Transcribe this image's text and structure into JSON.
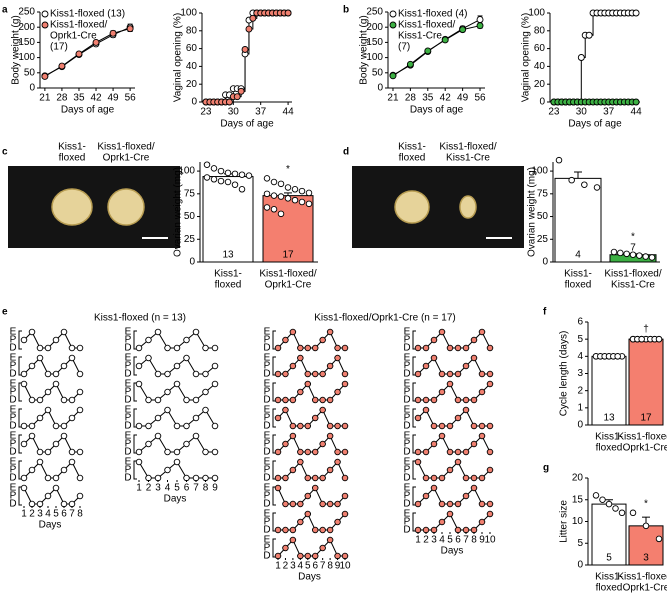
{
  "chart_data": [
    {
      "type": "line",
      "panel": "a",
      "y_label": "Body weight (g)",
      "x_label": "Days of age",
      "legend": true,
      "x": [
        21,
        28,
        35,
        42,
        49,
        56
      ],
      "xlim": [
        19,
        58
      ],
      "xticks": [
        21,
        28,
        35,
        42,
        49,
        56
      ],
      "ylim": [
        0,
        250
      ],
      "yticks": [
        0,
        50,
        100,
        150,
        200,
        250
      ],
      "series": [
        {
          "name": [
            "Kiss1-floxed (13)"
          ],
          "color": "#ffffff",
          "values": [
            40,
            70,
            110,
            145,
            175,
            200
          ],
          "errors": [
            2,
            3,
            4,
            6,
            8,
            10
          ]
        },
        {
          "name": [
            "Kiss1-floxed/",
            "Oprk1-Cre",
            "(17)"
          ],
          "color": "#f08070",
          "values": [
            38,
            72,
            112,
            150,
            180,
            195
          ],
          "errors": [
            2,
            3,
            4,
            6,
            8,
            9
          ]
        }
      ]
    },
    {
      "type": "line",
      "step": true,
      "y_label": "Vaginal opening (%)",
      "x_label": "Days of age",
      "x": [
        23,
        24,
        25,
        26,
        27,
        28,
        29,
        30,
        31,
        32,
        33,
        34,
        35,
        36,
        37,
        38,
        39,
        40,
        41,
        42,
        43,
        44
      ],
      "xlim": [
        22,
        45
      ],
      "xticks": [
        23,
        30,
        37,
        44
      ],
      "ylim": [
        0,
        100
      ],
      "yticks": [
        0,
        20,
        40,
        60,
        80,
        100
      ],
      "series": [
        {
          "name": [
            "Kiss1-floxed (13)"
          ],
          "color": "#ffffff",
          "values": [
            0,
            0,
            0,
            0,
            0,
            8,
            8,
            15,
            15,
            15,
            54,
            92,
            100,
            100,
            100,
            100,
            100,
            100,
            100,
            100,
            100,
            100
          ]
        },
        {
          "name": [
            "Kiss1-floxed/",
            "Oprk1-Cre",
            "(17)"
          ],
          "color": "#f08070",
          "values": [
            0,
            0,
            0,
            0,
            0,
            0,
            0,
            6,
            6,
            12,
            59,
            82,
            94,
            100,
            100,
            100,
            100,
            100,
            100,
            100,
            100,
            100
          ]
        }
      ]
    },
    {
      "type": "line",
      "panel": "b",
      "y_label": "Body weight (g)",
      "x_label": "Days of age",
      "legend": true,
      "x": [
        21,
        28,
        35,
        42,
        49,
        56
      ],
      "xlim": [
        19,
        58
      ],
      "xticks": [
        21,
        28,
        35,
        42,
        49,
        56
      ],
      "ylim": [
        0,
        250
      ],
      "yticks": [
        0,
        50,
        100,
        150,
        200,
        250
      ],
      "series": [
        {
          "name": [
            "Kiss1-floxed (4)"
          ],
          "color": "#ffffff",
          "values": [
            42,
            75,
            120,
            160,
            195,
            225
          ],
          "errors": [
            2,
            3,
            4,
            6,
            8,
            12
          ]
        },
        {
          "name": [
            "Kiss1-floxed/",
            "Kiss1-Cre",
            "(7)"
          ],
          "color": "#3cb043",
          "values": [
            40,
            78,
            122,
            158,
            192,
            205
          ],
          "errors": [
            2,
            3,
            4,
            5,
            7,
            8
          ]
        }
      ]
    },
    {
      "type": "line",
      "step": true,
      "y_label": "Vaginal opening (%)",
      "x_label": "Days of age",
      "x": [
        23,
        24,
        25,
        26,
        27,
        28,
        29,
        30,
        31,
        32,
        33,
        34,
        35,
        36,
        37,
        38,
        39,
        40,
        41,
        42,
        43,
        44
      ],
      "xlim": [
        22,
        45
      ],
      "xticks": [
        23,
        30,
        37,
        44
      ],
      "ylim": [
        0,
        100
      ],
      "yticks": [
        0,
        20,
        40,
        60,
        80,
        100
      ],
      "series": [
        {
          "name": [
            "Kiss1-floxed (4)"
          ],
          "color": "#ffffff",
          "values": [
            0,
            0,
            0,
            0,
            0,
            0,
            0,
            50,
            75,
            75,
            100,
            100,
            100,
            100,
            100,
            100,
            100,
            100,
            100,
            100,
            100,
            100
          ]
        },
        {
          "name": [
            "Kiss1-floxed/",
            "Kiss1-Cre",
            "(7)"
          ],
          "color": "#3cb043",
          "values": [
            0,
            0,
            0,
            0,
            0,
            0,
            0,
            0,
            0,
            0,
            0,
            0,
            0,
            0,
            0,
            0,
            0,
            0,
            0,
            0,
            0,
            0
          ]
        }
      ]
    },
    {
      "type": "image",
      "panel": "c",
      "labels": [
        [
          "Kiss1-",
          "floxed"
        ],
        [
          "Kiss1-floxed/",
          "Oprk1-Cre"
        ]
      ]
    },
    {
      "type": "bar",
      "y_label": "Ovarian weight (mg)",
      "categories": [
        [
          "Kiss1-",
          "floxed"
        ],
        [
          "Kiss1-floxed/",
          "Oprk1-Cre"
        ]
      ],
      "values": [
        94,
        73
      ],
      "errors": [
        3,
        3
      ],
      "colors": [
        "#ffffff",
        "#f47f6f"
      ],
      "n": [
        13,
        17
      ],
      "significance": [
        null,
        "*"
      ],
      "points": [
        [
          107,
          103,
          100,
          98,
          97,
          96,
          95,
          93,
          91,
          89,
          88,
          85,
          80
        ],
        [
          92,
          88,
          86,
          82,
          80,
          78,
          76,
          75,
          73,
          72,
          70,
          68,
          66,
          64,
          60,
          58,
          53
        ]
      ],
      "ylim": [
        0,
        110
      ],
      "yticks": [
        0,
        25,
        50,
        75,
        100
      ]
    },
    {
      "type": "image",
      "panel": "d",
      "labels": [
        [
          "Kiss1-",
          "floxed"
        ],
        [
          "Kiss1-floxed/",
          "Kiss1-Cre"
        ]
      ]
    },
    {
      "type": "bar",
      "y_label": "Ovarian weight (mg)",
      "categories": [
        [
          "Kiss1-",
          "floxed"
        ],
        [
          "Kiss1-floxed/",
          "Kiss1-Cre"
        ]
      ],
      "values": [
        92,
        8
      ],
      "errors": [
        7,
        1
      ],
      "colors": [
        "#ffffff",
        "#3cb043"
      ],
      "n": [
        4,
        7
      ],
      "significance": [
        null,
        "*"
      ],
      "points": [
        [
          112,
          90,
          85,
          82
        ],
        [
          11,
          10,
          9,
          8,
          7,
          6,
          5
        ]
      ],
      "ylim": [
        0,
        110
      ],
      "yticks": [
        0,
        25,
        50,
        75,
        100
      ]
    },
    {
      "type": "estrous",
      "panel": "e",
      "stages": [
        "D",
        "P",
        "E"
      ],
      "x_label": "Days",
      "groups": [
        {
          "title": "Kiss1-floxed (n = 13)",
          "color": "#ffffff",
          "columns": [
            {
              "days": [
                1,
                2,
                3,
                4,
                5,
                6,
                7,
                8
              ],
              "mice": [
                [
                  "P",
                  "E",
                  "D",
                  "D",
                  "P",
                  "E",
                  "D",
                  "D"
                ],
                [
                  "D",
                  "P",
                  "E",
                  "D",
                  "D",
                  "P",
                  "E",
                  "D"
                ],
                [
                  "E",
                  "D",
                  "D",
                  "P",
                  "E",
                  "D",
                  "D",
                  "P"
                ],
                [
                  "D",
                  "D",
                  "P",
                  "E",
                  "D",
                  "D",
                  "P",
                  "E"
                ],
                [
                  "P",
                  "E",
                  "D",
                  "D",
                  "P",
                  "E",
                  "D",
                  "D"
                ],
                [
                  "D",
                  "P",
                  "E",
                  "D",
                  "D",
                  "P",
                  "E",
                  "D"
                ],
                [
                  "E",
                  "D",
                  "D",
                  "P",
                  "E",
                  "D",
                  "D",
                  "P"
                ]
              ]
            },
            {
              "days": [
                1,
                2,
                3,
                4,
                5,
                6,
                7,
                8,
                9
              ],
              "mice": [
                [
                  "D",
                  "P",
                  "E",
                  "D",
                  "D",
                  "P",
                  "E",
                  "D",
                  "D"
                ],
                [
                  "P",
                  "E",
                  "D",
                  "D",
                  "P",
                  "E",
                  "D",
                  "D",
                  "P"
                ],
                [
                  "E",
                  "D",
                  "D",
                  "P",
                  "E",
                  "D",
                  "D",
                  "P",
                  "E"
                ],
                [
                  "D",
                  "D",
                  "P",
                  "E",
                  "D",
                  "D",
                  "P",
                  "E",
                  "D"
                ],
                [
                  "D",
                  "P",
                  "E",
                  "D",
                  "D",
                  "P",
                  "E",
                  "D",
                  "D"
                ],
                [
                  "E",
                  "D",
                  "D",
                  "P",
                  "E",
                  "D",
                  "D",
                  "D",
                  "D"
                ]
              ]
            }
          ]
        },
        {
          "title": "Kiss1-floxed/Oprk1-Cre (n = 17)",
          "color": "#f08070",
          "columns": [
            {
              "days": [
                1,
                2,
                3,
                4,
                5,
                6,
                7,
                8,
                9,
                10
              ],
              "mice": [
                [
                  "D",
                  "P",
                  "E",
                  "D",
                  "D",
                  "D",
                  "P",
                  "E",
                  "D",
                  "D"
                ],
                [
                  "D",
                  "D",
                  "P",
                  "E",
                  "D",
                  "D",
                  "D",
                  "P",
                  "E",
                  "D"
                ],
                [
                  "D",
                  "D",
                  "D",
                  "P",
                  "E",
                  "D",
                  "D",
                  "D",
                  "P",
                  "E"
                ],
                [
                  "P",
                  "E",
                  "D",
                  "D",
                  "D",
                  "P",
                  "E",
                  "D",
                  "D",
                  "D"
                ],
                [
                  "D",
                  "P",
                  "E",
                  "D",
                  "D",
                  "D",
                  "P",
                  "E",
                  "D",
                  "D"
                ],
                [
                  "D",
                  "D",
                  "P",
                  "E",
                  "D",
                  "D",
                  "D",
                  "P",
                  "E",
                  "D"
                ],
                [
                  "E",
                  "D",
                  "D",
                  "D",
                  "P",
                  "E",
                  "D",
                  "D",
                  "D",
                  "P"
                ],
                [
                  "D",
                  "D",
                  "D",
                  "P",
                  "E",
                  "D",
                  "D",
                  "D",
                  "P",
                  "E"
                ],
                [
                  "D",
                  "P",
                  "E",
                  "D",
                  "D",
                  "D",
                  "P",
                  "E",
                  "D",
                  "D"
                ]
              ]
            },
            {
              "days": [
                1,
                2,
                3,
                4,
                5,
                6,
                7,
                8,
                9,
                10
              ],
              "mice": [
                [
                  "D",
                  "D",
                  "P",
                  "E",
                  "D",
                  "D",
                  "D",
                  "P",
                  "E",
                  "D"
                ],
                [
                  "D",
                  "P",
                  "E",
                  "D",
                  "D",
                  "D",
                  "P",
                  "E",
                  "D",
                  "D"
                ],
                [
                  "D",
                  "D",
                  "D",
                  "P",
                  "E",
                  "D",
                  "D",
                  "D",
                  "P",
                  "E"
                ],
                [
                  "P",
                  "E",
                  "D",
                  "D",
                  "D",
                  "P",
                  "E",
                  "D",
                  "D",
                  "D"
                ],
                [
                  "D",
                  "D",
                  "P",
                  "E",
                  "D",
                  "D",
                  "D",
                  "P",
                  "E",
                  "D"
                ],
                [
                  "E",
                  "D",
                  "D",
                  "D",
                  "P",
                  "E",
                  "D",
                  "D",
                  "D",
                  "P"
                ],
                [
                  "D",
                  "P",
                  "E",
                  "D",
                  "D",
                  "D",
                  "P",
                  "E",
                  "D",
                  "D"
                ],
                [
                  "D",
                  "D",
                  "D",
                  "P",
                  "E",
                  "D",
                  "D",
                  "D",
                  "P",
                  "E"
                ]
              ]
            }
          ]
        }
      ]
    },
    {
      "type": "bar",
      "panel": "f",
      "y_label": "Cycle length (days)",
      "categories": [
        [
          "Kiss1-",
          "floxed"
        ],
        [
          "Kiss1-floxed/",
          "Oprk1-Cre"
        ]
      ],
      "values": [
        4,
        5
      ],
      "errors": [
        0,
        0.05
      ],
      "colors": [
        "#ffffff",
        "#f47f6f"
      ],
      "n": [
        13,
        17
      ],
      "significance": [
        null,
        "†"
      ],
      "points": [
        [
          4,
          4,
          4,
          4,
          4,
          4,
          4,
          4,
          4,
          4,
          4,
          4,
          4
        ],
        [
          5,
          5,
          5,
          5,
          5,
          5,
          5,
          5,
          5,
          5,
          5,
          5,
          5,
          5,
          5,
          5,
          5
        ]
      ],
      "ylim": [
        0,
        6
      ],
      "yticks": [
        0,
        1,
        2,
        3,
        4,
        5,
        6
      ]
    },
    {
      "type": "bar",
      "panel": "g",
      "y_label": "Litter size",
      "categories": [
        [
          "Kiss1-",
          "floxed"
        ],
        [
          "Kiss1-floxed/",
          "Oprk1-Cre"
        ]
      ],
      "values": [
        14,
        9
      ],
      "errors": [
        1,
        2
      ],
      "colors": [
        "#ffffff",
        "#f47f6f"
      ],
      "n": [
        5,
        3
      ],
      "significance": [
        null,
        "*"
      ],
      "points": [
        [
          16,
          15,
          14,
          13,
          12
        ],
        [
          12,
          9,
          6
        ]
      ],
      "ylim": [
        0,
        20
      ],
      "yticks": [
        0,
        5,
        10,
        15,
        20
      ]
    }
  ]
}
